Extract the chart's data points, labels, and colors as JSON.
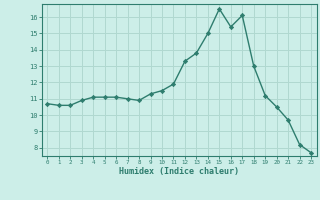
{
  "x": [
    0,
    1,
    2,
    3,
    4,
    5,
    6,
    7,
    8,
    9,
    10,
    11,
    12,
    13,
    14,
    15,
    16,
    17,
    18,
    19,
    20,
    21,
    22,
    23
  ],
  "y": [
    10.7,
    10.6,
    10.6,
    10.9,
    11.1,
    11.1,
    11.1,
    11.0,
    10.9,
    11.3,
    11.5,
    11.9,
    13.3,
    13.8,
    15.0,
    16.5,
    15.4,
    16.1,
    13.0,
    11.2,
    10.5,
    9.7,
    8.2,
    7.7
  ],
  "xlabel": "Humidex (Indice chaleur)",
  "xlim": [
    -0.5,
    23.5
  ],
  "ylim": [
    7.5,
    16.8
  ],
  "yticks": [
    8,
    9,
    10,
    11,
    12,
    13,
    14,
    15,
    16
  ],
  "xticks": [
    0,
    1,
    2,
    3,
    4,
    5,
    6,
    7,
    8,
    9,
    10,
    11,
    12,
    13,
    14,
    15,
    16,
    17,
    18,
    19,
    20,
    21,
    22,
    23
  ],
  "line_color": "#2e7d6e",
  "marker_color": "#2e7d6e",
  "bg_color": "#cceee8",
  "grid_color": "#b0d8d0",
  "axis_color": "#2e7d6e",
  "tick_color": "#2e7d6e",
  "label_color": "#2e7d6e"
}
